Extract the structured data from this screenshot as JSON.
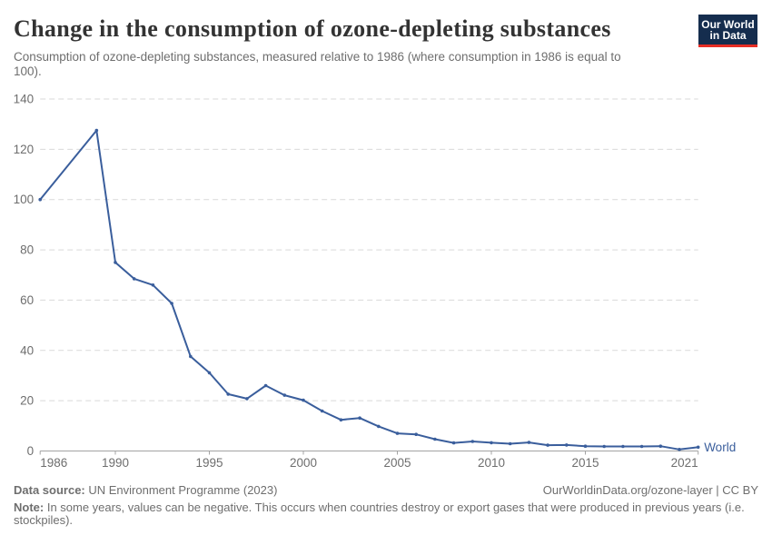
{
  "header": {
    "title": "Change in the consumption of ozone-depleting substances",
    "subtitle": "Consumption of ozone-depleting substances, measured relative to 1986 (where consumption in 1986 is equal to 100).",
    "logo": {
      "line1": "Our World",
      "line2": "in Data"
    }
  },
  "chart_data": {
    "type": "line",
    "title": "Change in the consumption of ozone-depleting substances",
    "xlabel": "",
    "ylabel": "",
    "xlim": [
      1986,
      2021
    ],
    "ylim": [
      0,
      140
    ],
    "xticks": [
      1986,
      1990,
      1995,
      2000,
      2005,
      2010,
      2015,
      2021
    ],
    "yticks": [
      0,
      20,
      40,
      60,
      80,
      100,
      120,
      140
    ],
    "grid": "horizontal-dashed",
    "legend": "series-end-label",
    "series": [
      {
        "name": "World",
        "points": [
          [
            1986,
            100
          ],
          [
            1989,
            127.5
          ],
          [
            1990,
            75
          ],
          [
            1991,
            68.5
          ],
          [
            1992,
            66
          ],
          [
            1993,
            58.7
          ],
          [
            1994,
            37.6
          ],
          [
            1995,
            31.1
          ],
          [
            1996,
            22.6
          ],
          [
            1997,
            20.8
          ],
          [
            1998,
            26
          ],
          [
            1999,
            22.2
          ],
          [
            2000,
            20.2
          ],
          [
            2001,
            15.9
          ],
          [
            2002,
            12.4
          ],
          [
            2003,
            13.1
          ],
          [
            2004,
            9.8
          ],
          [
            2005,
            7
          ],
          [
            2006,
            6.6
          ],
          [
            2007,
            4.7
          ],
          [
            2008,
            3.2
          ],
          [
            2009,
            3.8
          ],
          [
            2010,
            3.3
          ],
          [
            2011,
            2.9
          ],
          [
            2012,
            3.4
          ],
          [
            2013,
            2.3
          ],
          [
            2014,
            2.4
          ],
          [
            2015,
            1.9
          ],
          [
            2016,
            1.8
          ],
          [
            2017,
            1.8
          ],
          [
            2018,
            1.8
          ],
          [
            2019,
            1.9
          ],
          [
            2020,
            0.6
          ],
          [
            2021,
            1.5
          ]
        ]
      }
    ]
  },
  "footer": {
    "datasource_label": "Data source:",
    "datasource_value": " UN Environment Programme (2023)",
    "link_text": "OurWorldinData.org/ozone-layer | CC BY",
    "note_label": "Note:",
    "note_text": " In some years, values can be negative. This occurs when countries destroy or export gases that were produced in previous years (i.e. stockpiles)."
  },
  "colors": {
    "line": "#3a5e9c",
    "grid": "#d9d9d9",
    "axis": "#a3a3a3",
    "tick_text": "#6e6e6e",
    "title_text": "#333333",
    "logo_bg": "#152d4e",
    "logo_red": "#e62e25"
  }
}
